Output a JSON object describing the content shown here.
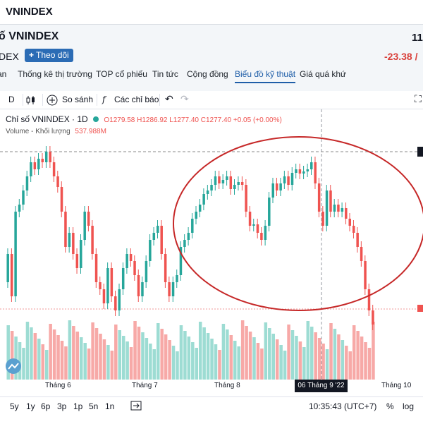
{
  "window": {
    "title": "VNINDEX"
  },
  "header": {
    "name": "ố VNINDEX",
    "price": "11",
    "symbol": "DEX",
    "follow_label": "Theo dõi",
    "change": "-23.38 /",
    "tabs": [
      "an",
      "Thống kê thị trường",
      "TOP cổ phiếu",
      "Tin tức",
      "Cộng đồng",
      "Biểu đồ kỹ thuật",
      "Giá quá khứ"
    ],
    "active_tab": "Biểu đồ kỹ thuật"
  },
  "toolbar": {
    "interval": "D",
    "compare": "So sánh",
    "indicators": "Các chỉ báo"
  },
  "legend": {
    "title": "Chỉ số VNINDEX · 1D",
    "ohlc": "O1279.58  H1286.92  L1277.40  C1277.40  +0.05 (+0.00%)",
    "volume_label": "Volume - Khối lượng",
    "volume_value": "537.988M"
  },
  "chart_data": {
    "type": "candlestick",
    "x_labels": [
      "Tháng 6",
      "Tháng 7",
      "Tháng 8",
      "Tháng 10"
    ],
    "crosshair_label": "06 Tháng 9 '22",
    "annotation": "red ellipse around Aug–Sep rally and pullback",
    "colors": {
      "up": "#26a69a",
      "down": "#ef5350",
      "vol_up": "#9ddcd3",
      "vol_down": "#f7a9a7",
      "ellipse": "#c62828"
    }
  },
  "bottom": {
    "ranges": [
      "5y",
      "1y",
      "6p",
      "3p",
      "1p",
      "5n",
      "1n"
    ],
    "time": "10:35:43 (UTC+7)",
    "percent": "%",
    "log": "log"
  }
}
